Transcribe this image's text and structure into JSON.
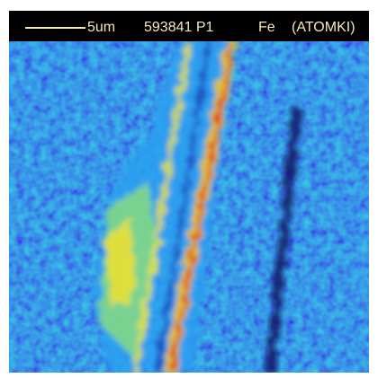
{
  "header": {
    "scale": "5um",
    "sample": "593841 P1",
    "element": "Fe",
    "lab": "(ATOMKI)"
  }
}
